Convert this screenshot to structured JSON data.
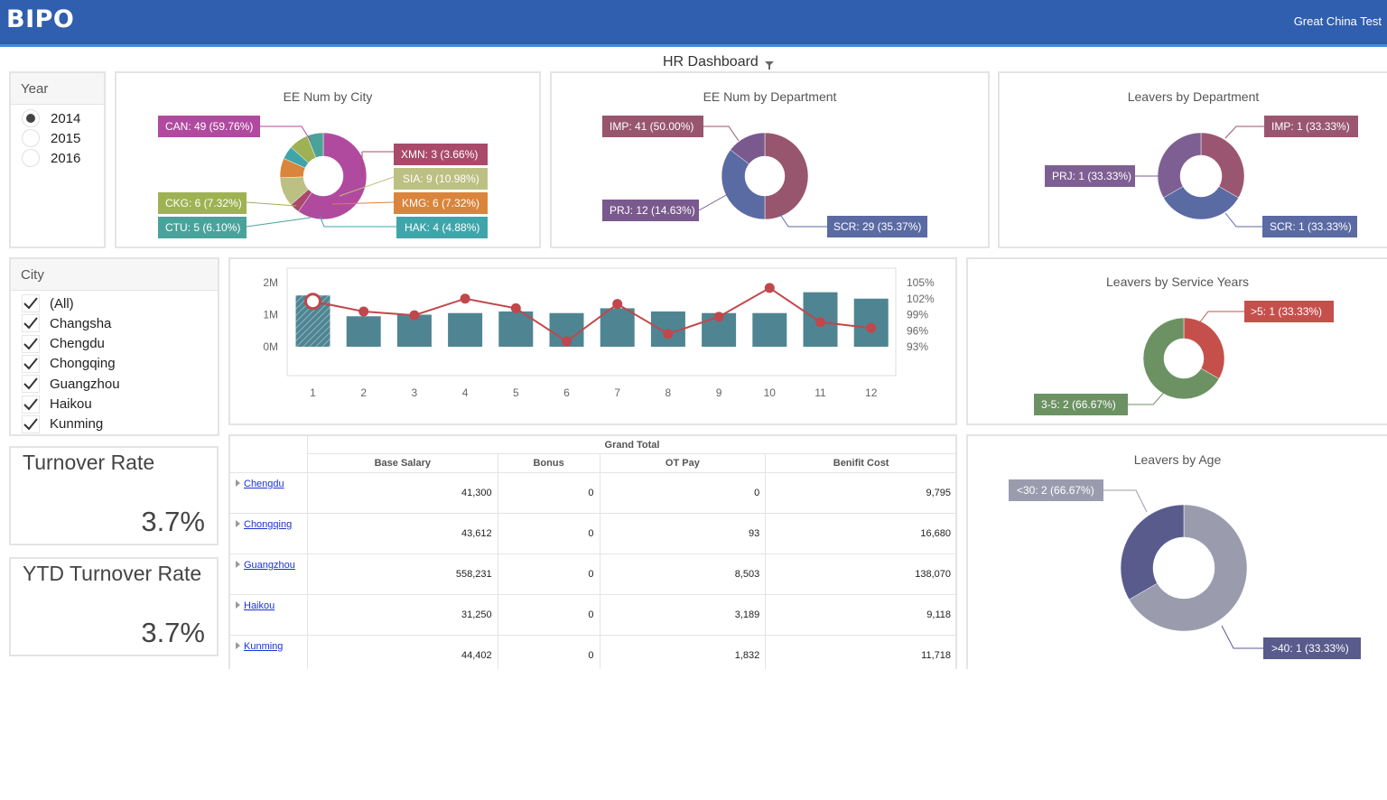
{
  "header": {
    "logo": "BIPO",
    "company": "Great China Test"
  },
  "dashboard": {
    "title": "HR Dashboard"
  },
  "year_filter": {
    "title": "Year",
    "options": [
      {
        "label": "2014",
        "selected": true
      },
      {
        "label": "2015",
        "selected": false
      },
      {
        "label": "2016",
        "selected": false
      }
    ]
  },
  "city_filter": {
    "title": "City",
    "options": [
      {
        "label": "(All)",
        "checked": true
      },
      {
        "label": "Changsha",
        "checked": true
      },
      {
        "label": "Chengdu",
        "checked": true
      },
      {
        "label": "Chongqing",
        "checked": true
      },
      {
        "label": "Guangzhou",
        "checked": true
      },
      {
        "label": "Haikou",
        "checked": true
      },
      {
        "label": "Kunming",
        "checked": true
      }
    ]
  },
  "kpis": {
    "turnover": {
      "label": "Turnover Rate",
      "value": "3.7%"
    },
    "ytd_turnover": {
      "label": "YTD Turnover Rate",
      "value": "3.7%"
    }
  },
  "charts": {
    "ee_by_city": {
      "title": "EE Num by City",
      "labels": [
        "CAN: 49 (59.76%)",
        "XMN: 3 (3.66%)",
        "SIA: 9 (10.98%)",
        "KMG: 6 (7.32%)",
        "HAK: 4 (4.88%)",
        "CKG: 6 (7.32%)",
        "CTU: 5 (6.10%)"
      ]
    },
    "ee_by_dept": {
      "title": "EE Num by Department",
      "labels": [
        "IMP: 41 (50.00%)",
        "PRJ: 12 (14.63%)",
        "SCR: 29 (35.37%)"
      ]
    },
    "leavers_by_dept": {
      "title": "Leavers by Department",
      "labels": [
        "IMP: 1 (33.33%)",
        "PRJ: 1 (33.33%)",
        "SCR: 1 (33.33%)"
      ]
    },
    "service_years": {
      "title": "Leavers by Service Years",
      "labels": [
        ">5: 1 (33.33%)",
        "3-5: 2 (66.67%)"
      ]
    },
    "by_age": {
      "title": "Leavers by Age",
      "labels": [
        "<30: 2 (66.67%)",
        ">40: 1 (33.33%)"
      ]
    }
  },
  "chart_data": [
    {
      "type": "pie",
      "title": "EE Num by City",
      "categories": [
        "CAN",
        "XMN",
        "SIA",
        "KMG",
        "HAK",
        "CKG",
        "CTU"
      ],
      "values": [
        49,
        3,
        9,
        6,
        4,
        6,
        5
      ],
      "colors": [
        "#b04a9f",
        "#a94a6b",
        "#bcc083",
        "#d9853b",
        "#3fa5ab",
        "#9fb253",
        "#4aa39a"
      ]
    },
    {
      "type": "pie",
      "title": "EE Num by Department",
      "categories": [
        "IMP",
        "SCR",
        "PRJ"
      ],
      "values": [
        41,
        29,
        12
      ],
      "colors": [
        "#98566e",
        "#5a6aa3",
        "#7a5a8e"
      ]
    },
    {
      "type": "pie",
      "title": "Leavers by Department",
      "categories": [
        "IMP",
        "SCR",
        "PRJ"
      ],
      "values": [
        1,
        1,
        1
      ],
      "colors": [
        "#9a5670",
        "#5a6aa3",
        "#7e5f93"
      ]
    },
    {
      "type": "bar",
      "categories": [
        "1",
        "2",
        "3",
        "4",
        "5",
        "6",
        "7",
        "8",
        "9",
        "10",
        "11",
        "12"
      ],
      "series": [
        {
          "values": [
            1.6,
            0.95,
            1.0,
            1.05,
            1.1,
            1.05,
            1.2,
            1.1,
            1.05,
            1.05,
            1.7,
            1.5
          ],
          "axis": "left",
          "color": "#4f8592"
        },
        {
          "values": [
            101.5,
            99.6,
            98.9,
            102.0,
            100.2,
            94.0,
            101.0,
            95.4,
            98.6,
            104.0,
            97.6,
            96.5
          ],
          "axis": "right",
          "type": "line",
          "color": "#c0474c"
        }
      ],
      "highlight_index": 0,
      "y_ticks": [
        "2M",
        "1M",
        "0M"
      ],
      "ylim": [
        0,
        2
      ],
      "y2_ticks": [
        "105%",
        "102%",
        "99%",
        "96%",
        "93%"
      ],
      "y2lim": [
        93,
        105
      ]
    },
    {
      "type": "pie",
      "title": "Leavers by Service Years",
      "categories": [
        ">5",
        "3-5"
      ],
      "values": [
        1,
        2
      ],
      "colors": [
        "#c5504b",
        "#6c9264"
      ]
    },
    {
      "type": "pie",
      "title": "Leavers by Age",
      "categories": [
        "<30",
        ">40"
      ],
      "values": [
        2,
        1
      ],
      "colors": [
        "#9a9cae",
        "#585b8c"
      ]
    }
  ],
  "table": {
    "group_header": "Grand Total",
    "columns": [
      "Base Salary",
      "Bonus",
      "OT Pay",
      "Benifit Cost"
    ],
    "rows": [
      {
        "city": "Chengdu",
        "values": [
          "41,300",
          "0",
          "0",
          "9,795"
        ]
      },
      {
        "city": "Chongqing",
        "values": [
          "43,612",
          "0",
          "93",
          "16,680"
        ]
      },
      {
        "city": "Guangzhou",
        "values": [
          "558,231",
          "0",
          "8,503",
          "138,070"
        ]
      },
      {
        "city": "Haikou",
        "values": [
          "31,250",
          "0",
          "3,189",
          "9,118"
        ]
      },
      {
        "city": "Kunming",
        "values": [
          "44,402",
          "0",
          "1,832",
          "11,718"
        ]
      }
    ]
  }
}
